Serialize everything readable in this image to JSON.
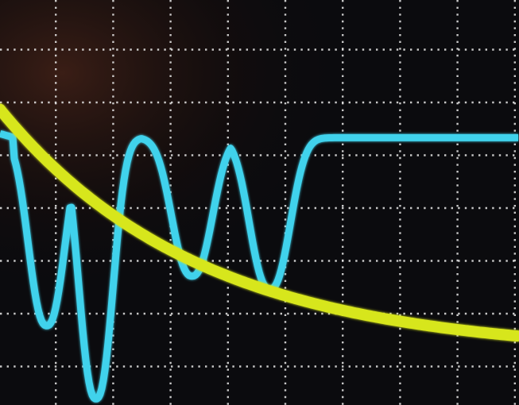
{
  "screen": {
    "background": "#0b0b0e",
    "glare_color": "#3a1a12",
    "grid_color": "#e8e8e8",
    "grid_style": "dotted",
    "major_divisions_x": 9,
    "major_divisions_y": 7
  },
  "traces": [
    {
      "name": "",
      "color": "#3fd2ec",
      "shape": "periodic-dips",
      "baseline_level": 0.34,
      "dips": [
        {
          "center": 0.09,
          "depth": 0.72
        },
        {
          "center": 0.185,
          "depth": 1.0
        },
        {
          "center": 0.37,
          "depth": 0.53
        },
        {
          "center": 0.52,
          "depth": 0.58
        }
      ]
    },
    {
      "name": "",
      "color": "#d7e61c",
      "shape": "exponential-decay",
      "start_level": 0.27,
      "end_level": 0.83
    }
  ]
}
